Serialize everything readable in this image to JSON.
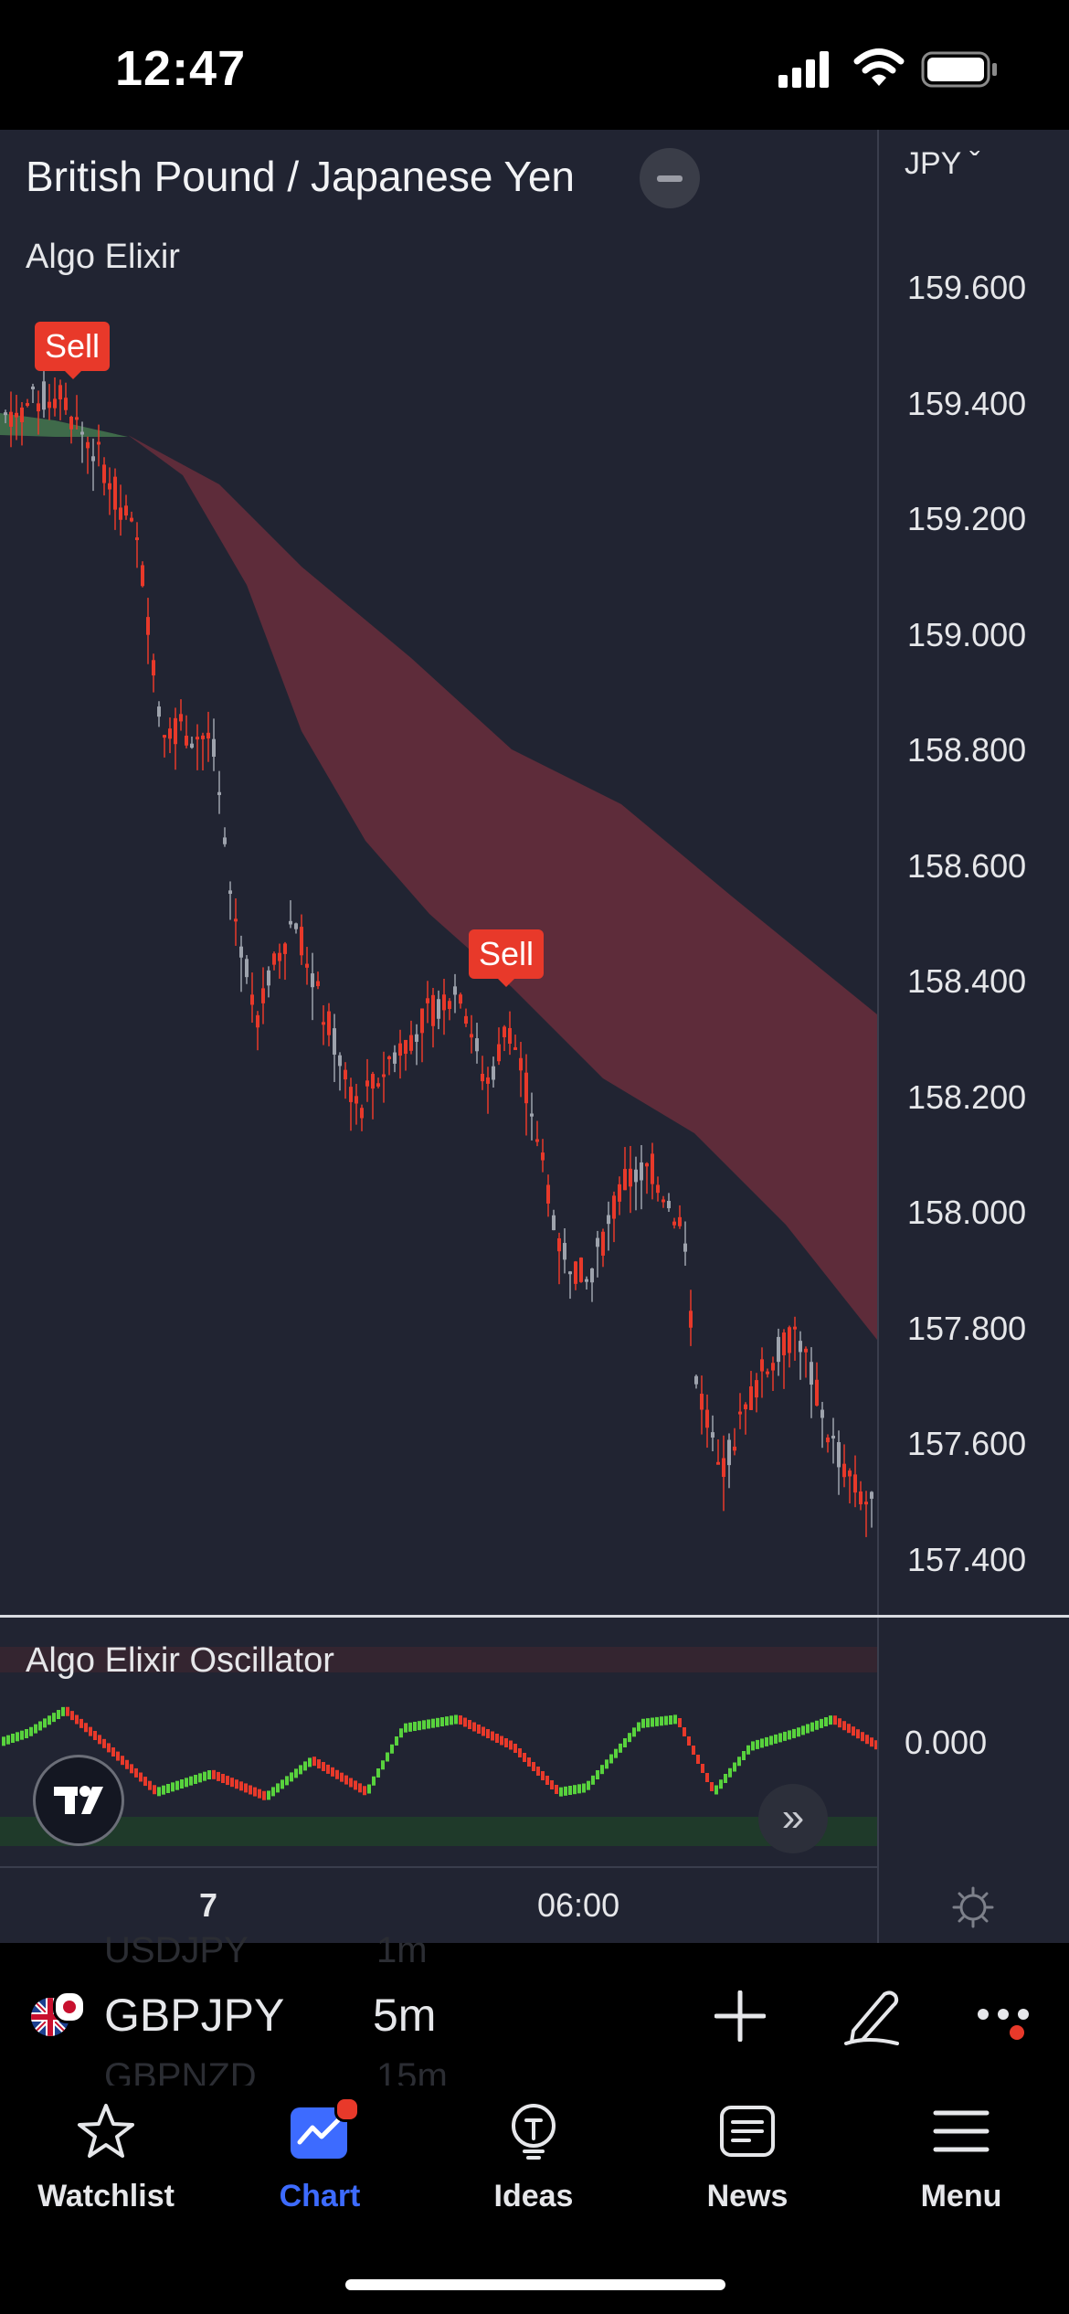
{
  "status_bar": {
    "time": "12:47"
  },
  "chart": {
    "symbol_title": "British Pound / Japanese Yen",
    "indicator_name": "Algo Elixir",
    "currency": "JPY ˇ",
    "price_labels": [
      "159.600",
      "159.400",
      "159.200",
      "159.000",
      "158.800",
      "158.600",
      "158.400",
      "158.200",
      "158.000",
      "157.800",
      "157.600",
      "157.400"
    ],
    "sell_label": "Sell",
    "oscillator_name": "Algo Elixir Oscillator",
    "oscillator_value": "0.000",
    "time_labels": [
      "7",
      "06:00"
    ],
    "colors": {
      "background": "#212432",
      "bear": "#e8392a",
      "bull": "#58d23d",
      "cloud": "#5e2c3a"
    }
  },
  "symbol_bar": {
    "ghost_prev_symbol": "USDJPY",
    "ghost_prev_interval": "1m",
    "symbol": "GBPJPY",
    "interval": "5m",
    "ghost_next_symbol": "GBPNZD",
    "ghost_next_interval": "15m",
    "icons": [
      "plus-icon",
      "pencil-icon",
      "more-icon"
    ]
  },
  "bottom_nav": {
    "items": [
      {
        "label": "Watchlist",
        "icon": "star-icon",
        "active": false
      },
      {
        "label": "Chart",
        "icon": "chart-icon",
        "active": true
      },
      {
        "label": "Ideas",
        "icon": "lightbulb-icon",
        "active": false
      },
      {
        "label": "News",
        "icon": "news-icon",
        "active": false
      },
      {
        "label": "Menu",
        "icon": "hamburger-icon",
        "active": false
      }
    ],
    "active_color": "#3d6bff"
  }
}
